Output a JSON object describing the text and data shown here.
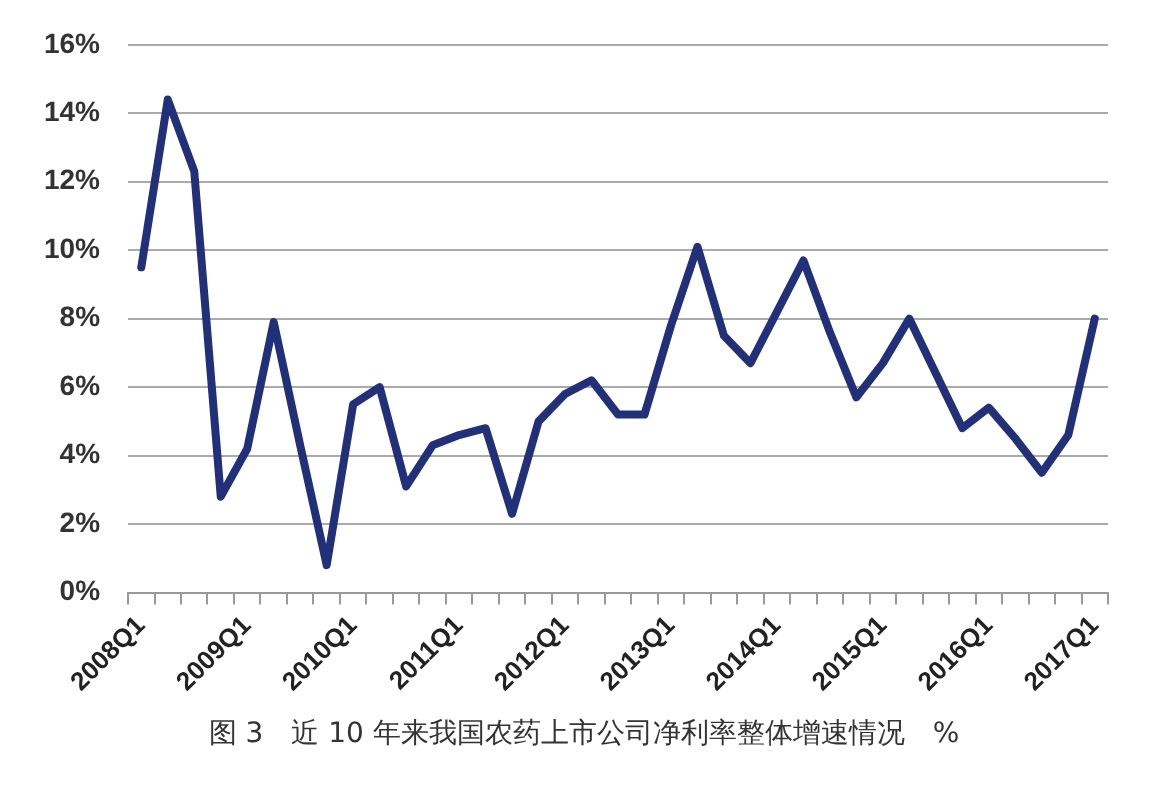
{
  "chart_data": {
    "type": "line",
    "categories": [
      "2008Q1",
      null,
      null,
      null,
      "2009Q1",
      null,
      null,
      null,
      "2010Q1",
      null,
      null,
      null,
      "2011Q1",
      null,
      null,
      null,
      "2012Q1",
      null,
      null,
      null,
      "2013Q1",
      null,
      null,
      null,
      "2014Q1",
      null,
      null,
      null,
      "2015Q1",
      null,
      null,
      null,
      "2016Q1",
      null,
      null,
      null,
      "2017Q1"
    ],
    "series": [
      {
        "color": "#22307a",
        "values": [
          9.5,
          14.4,
          12.3,
          2.8,
          4.2,
          7.9,
          4.3,
          0.8,
          5.5,
          6.0,
          3.1,
          4.3,
          4.6,
          4.8,
          2.3,
          5.0,
          5.8,
          6.2,
          5.2,
          5.2,
          7.8,
          10.1,
          7.5,
          6.7,
          8.2,
          9.7,
          7.6,
          5.7,
          6.7,
          8.0,
          6.4,
          4.8,
          5.4,
          4.5,
          3.5,
          4.6,
          8.0
        ]
      }
    ],
    "ylim": [
      0,
      16
    ],
    "yticks": [
      {
        "value": 0,
        "label": "0%"
      },
      {
        "value": 2,
        "label": "2%"
      },
      {
        "value": 4,
        "label": "4%"
      },
      {
        "value": 6,
        "label": "6%"
      },
      {
        "value": 8,
        "label": "8%"
      },
      {
        "value": 10,
        "label": "10%"
      },
      {
        "value": 12,
        "label": "12%"
      },
      {
        "value": 14,
        "label": "14%"
      },
      {
        "value": 16,
        "label": "16%"
      }
    ],
    "grid": "y",
    "legend": false,
    "marker": "none",
    "line_style": "solid",
    "annotations": [
      "图 3　近 10 年来我国农药上市公司净利率整体增速情况　%"
    ]
  }
}
